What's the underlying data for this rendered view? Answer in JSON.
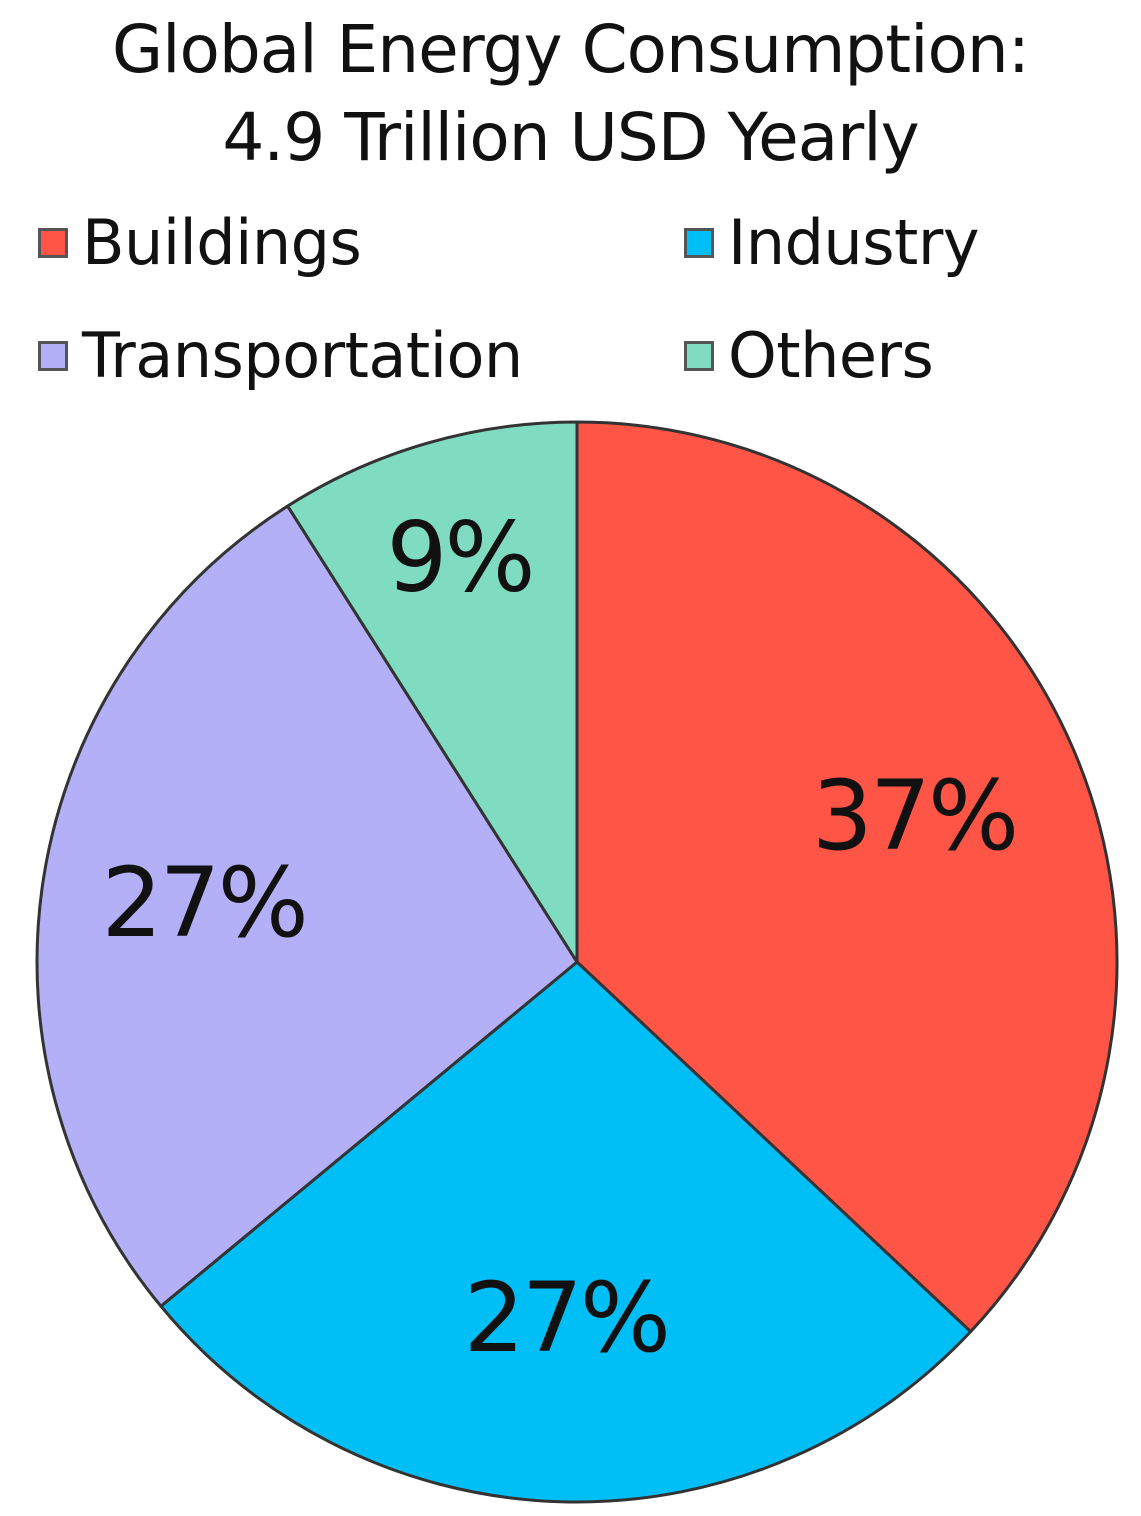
{
  "chart_data": {
    "type": "pie",
    "title": [
      "Global Energy Consumption:",
      "4.9 Trillion USD Yearly"
    ],
    "categories": [
      "Buildings",
      "Industry",
      "Transportation",
      "Others"
    ],
    "values": [
      37,
      27,
      27,
      9
    ],
    "data_labels": [
      "37%",
      "27%",
      "27%",
      "9%"
    ],
    "colors": [
      "#ff5546",
      "#00bff7",
      "#b3b0f7",
      "#80dcc0"
    ],
    "legend_placement": "top",
    "start": "top, clockwise"
  }
}
